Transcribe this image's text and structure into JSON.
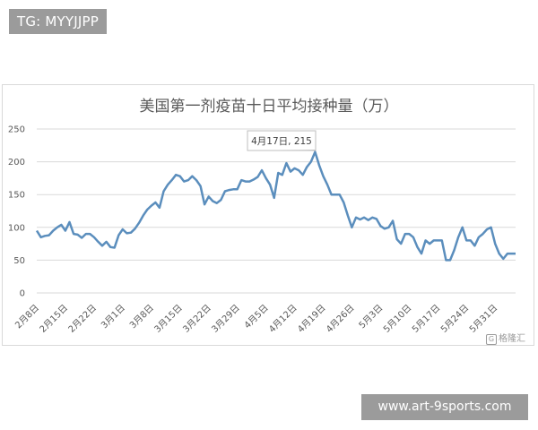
{
  "top_tag": "TG: MYYJJPP",
  "bottom_tag": "www.art-9sports.com",
  "watermark": "格隆汇",
  "watermark_mark": "G",
  "tooltip": "4月17日, 215",
  "chart_data": {
    "type": "line",
    "title": "美国第一剂疫苗十日平均接种量（万）",
    "xlabel": "",
    "ylabel": "",
    "ylim": [
      0,
      250
    ],
    "yticks": [
      0,
      50,
      100,
      150,
      200,
      250
    ],
    "grid": true,
    "legend": "none",
    "line_color": "#5b8ebd",
    "x_tick_labels": [
      "2月8日",
      "2月15日",
      "2月22日",
      "3月1日",
      "3月8日",
      "3月15日",
      "3月22日",
      "3月29日",
      "4月5日",
      "4月12日",
      "4月19日",
      "4月26日",
      "5月3日",
      "5月10日",
      "5月17日",
      "5月24日",
      "5月31日"
    ],
    "x_start": "2月8日",
    "highlight": {
      "x": "4月17日",
      "y": 215
    },
    "series": [
      {
        "values": [
          95,
          85,
          87,
          88,
          95,
          100,
          104,
          95,
          108,
          90,
          89,
          84,
          90,
          90,
          85,
          78,
          72,
          78,
          70,
          69,
          88,
          97,
          91,
          92,
          98,
          107,
          118,
          127,
          133,
          138,
          130,
          155,
          165,
          172,
          180,
          178,
          170,
          172,
          178,
          172,
          163,
          135,
          147,
          140,
          137,
          142,
          155,
          157,
          158,
          158,
          172,
          170,
          170,
          173,
          177,
          187,
          175,
          165,
          145,
          183,
          180,
          198,
          185,
          190,
          187,
          180,
          192,
          200,
          215,
          195,
          178,
          165,
          150,
          150,
          150,
          138,
          118,
          100,
          115,
          112,
          115,
          111,
          115,
          113,
          102,
          98,
          100,
          110,
          82,
          75,
          90,
          90,
          85,
          70,
          60,
          80,
          75,
          80,
          80,
          80,
          50,
          50,
          65,
          85,
          100,
          80,
          80,
          72,
          85,
          90,
          97,
          100,
          75,
          60,
          52,
          60,
          60,
          60
        ]
      }
    ]
  }
}
